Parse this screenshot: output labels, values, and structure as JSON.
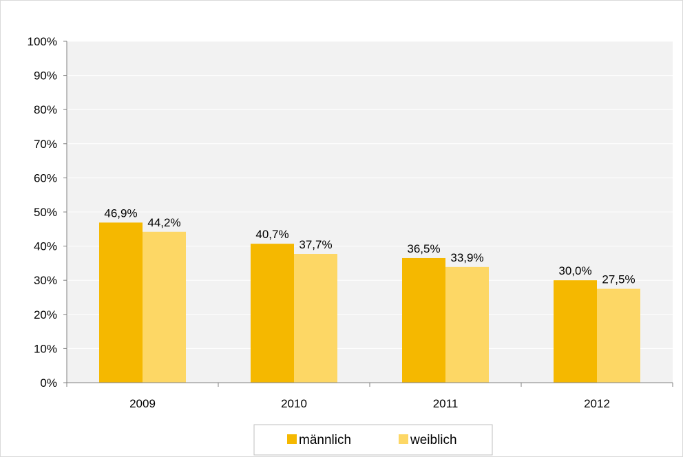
{
  "chart_data": {
    "type": "bar",
    "categories": [
      "2009",
      "2010",
      "2011",
      "2012"
    ],
    "series": [
      {
        "name": "männlich",
        "values": [
          46.9,
          40.7,
          36.5,
          30.0
        ],
        "labels": [
          "46,9%",
          "40,7%",
          "36,5%",
          "30,0%"
        ],
        "color": "#f5b800"
      },
      {
        "name": "weiblich",
        "values": [
          44.2,
          37.7,
          33.9,
          27.5
        ],
        "labels": [
          "44,2%",
          "37,7%",
          "33,9%",
          "27,5%"
        ],
        "color": "#fdd765"
      }
    ],
    "yticks": [
      "0%",
      "10%",
      "20%",
      "30%",
      "40%",
      "50%",
      "60%",
      "70%",
      "80%",
      "90%",
      "100%"
    ],
    "ylim": [
      0,
      100
    ],
    "title": "",
    "xlabel": "",
    "ylabel": "",
    "grid": true,
    "legend_position": "bottom-center",
    "plot_background": "#f2f2f2",
    "grid_color": "#ffffff",
    "axis_color": "#808080"
  }
}
